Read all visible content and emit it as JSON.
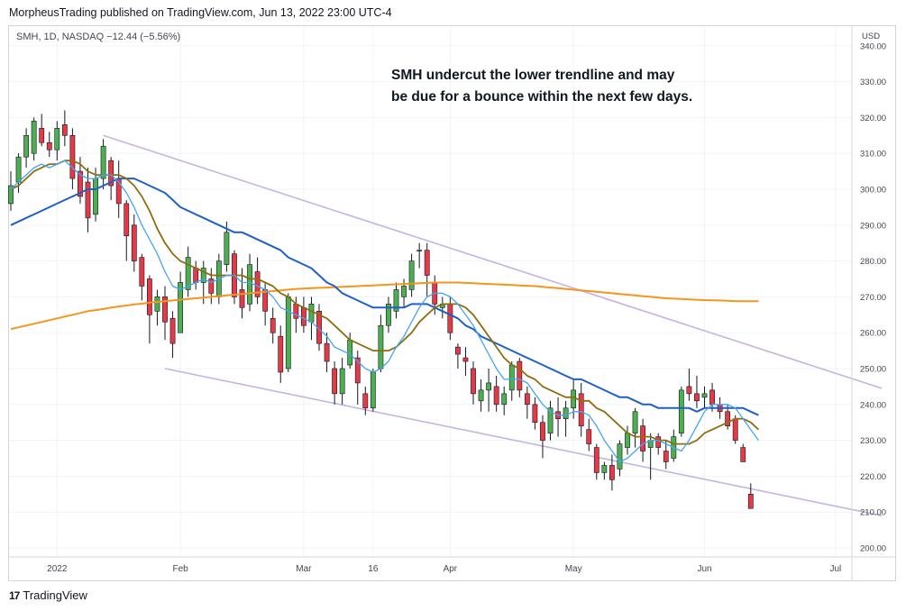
{
  "header": {
    "text": "MorpheusTrading published on TradingView.com, Jun 13, 2022 23:00 UTC-4"
  },
  "symbol": {
    "text": "SMH, 1D, NASDAQ  −12.44 (−5.56%)"
  },
  "annotation": {
    "line1": "SMH undercut the lower trendline and may",
    "line2": "be due for a bounce within the next few days."
  },
  "footer": {
    "brand": "TradingView",
    "logo_icon": "tradingview-logo-icon"
  },
  "chart_data": {
    "type": "candlestick",
    "currency_label": "USD",
    "y_ticks": [
      "200.00",
      "210.00",
      "220.00",
      "230.00",
      "240.00",
      "250.00",
      "260.00",
      "270.00",
      "280.00",
      "290.00",
      "300.00",
      "310.00",
      "320.00",
      "330.00",
      "340.00"
    ],
    "ylim": [
      200,
      345
    ],
    "x_ticks": [
      "2022",
      "Feb",
      "Mar",
      "16",
      "Apr",
      "May",
      "Jun",
      "Jul"
    ],
    "colors": {
      "up": "#4caf50",
      "down": "#e53947",
      "ma_short": "#42a5f5",
      "ma_mid": "#8d6e0f",
      "ma_long": "#1e5fc8",
      "ma_200": "#f7941d",
      "trendline": "#c5b3e0"
    },
    "candles": [
      {
        "o": 296,
        "h": 305,
        "l": 294,
        "c": 301
      },
      {
        "o": 302,
        "h": 310,
        "l": 299,
        "c": 309
      },
      {
        "o": 309,
        "h": 317,
        "l": 306,
        "c": 315
      },
      {
        "o": 310,
        "h": 320,
        "l": 308,
        "c": 319
      },
      {
        "o": 317,
        "h": 321,
        "l": 312,
        "c": 313
      },
      {
        "o": 313,
        "h": 316,
        "l": 309,
        "c": 311
      },
      {
        "o": 311,
        "h": 319,
        "l": 308,
        "c": 317
      },
      {
        "o": 318,
        "h": 322,
        "l": 312,
        "c": 315
      },
      {
        "o": 315,
        "h": 317,
        "l": 300,
        "c": 303
      },
      {
        "o": 305,
        "h": 309,
        "l": 296,
        "c": 298
      },
      {
        "o": 302,
        "h": 306,
        "l": 288,
        "c": 292
      },
      {
        "o": 293,
        "h": 306,
        "l": 291,
        "c": 303
      },
      {
        "o": 303,
        "h": 314,
        "l": 300,
        "c": 312
      },
      {
        "o": 308,
        "h": 309,
        "l": 297,
        "c": 301
      },
      {
        "o": 303,
        "h": 308,
        "l": 292,
        "c": 296
      },
      {
        "o": 296,
        "h": 297,
        "l": 280,
        "c": 287
      },
      {
        "o": 290,
        "h": 293,
        "l": 277,
        "c": 280
      },
      {
        "o": 281,
        "h": 282,
        "l": 269,
        "c": 273
      },
      {
        "o": 275,
        "h": 276,
        "l": 257,
        "c": 265
      },
      {
        "o": 266,
        "h": 272,
        "l": 262,
        "c": 270
      },
      {
        "o": 270,
        "h": 273,
        "l": 258,
        "c": 263
      },
      {
        "o": 264,
        "h": 266,
        "l": 253,
        "c": 257
      },
      {
        "o": 260,
        "h": 277,
        "l": 260,
        "c": 274
      },
      {
        "o": 272,
        "h": 284,
        "l": 270,
        "c": 281
      },
      {
        "o": 278,
        "h": 280,
        "l": 272,
        "c": 274
      },
      {
        "o": 274,
        "h": 280,
        "l": 268,
        "c": 278
      },
      {
        "o": 275,
        "h": 278,
        "l": 268,
        "c": 271
      },
      {
        "o": 270,
        "h": 282,
        "l": 268,
        "c": 280
      },
      {
        "o": 279,
        "h": 291,
        "l": 277,
        "c": 288
      },
      {
        "o": 282,
        "h": 283,
        "l": 268,
        "c": 270
      },
      {
        "o": 272,
        "h": 278,
        "l": 264,
        "c": 267
      },
      {
        "o": 268,
        "h": 282,
        "l": 266,
        "c": 279
      },
      {
        "o": 277,
        "h": 281,
        "l": 268,
        "c": 270
      },
      {
        "o": 272,
        "h": 274,
        "l": 262,
        "c": 266
      },
      {
        "o": 264,
        "h": 267,
        "l": 257,
        "c": 260
      },
      {
        "o": 259,
        "h": 262,
        "l": 246,
        "c": 249
      },
      {
        "o": 250,
        "h": 271,
        "l": 249,
        "c": 270
      },
      {
        "o": 268,
        "h": 270,
        "l": 260,
        "c": 264
      },
      {
        "o": 267,
        "h": 270,
        "l": 260,
        "c": 262
      },
      {
        "o": 263,
        "h": 270,
        "l": 258,
        "c": 268
      },
      {
        "o": 266,
        "h": 268,
        "l": 255,
        "c": 257
      },
      {
        "o": 257,
        "h": 260,
        "l": 249,
        "c": 252
      },
      {
        "o": 250,
        "h": 252,
        "l": 240,
        "c": 243
      },
      {
        "o": 243,
        "h": 253,
        "l": 240,
        "c": 250
      },
      {
        "o": 251,
        "h": 260,
        "l": 250,
        "c": 258
      },
      {
        "o": 253,
        "h": 255,
        "l": 240,
        "c": 246
      },
      {
        "o": 243,
        "h": 245,
        "l": 237,
        "c": 239
      },
      {
        "o": 239,
        "h": 250,
        "l": 238,
        "c": 249
      },
      {
        "o": 250,
        "h": 265,
        "l": 249,
        "c": 262
      },
      {
        "o": 262,
        "h": 270,
        "l": 260,
        "c": 268
      },
      {
        "o": 266,
        "h": 274,
        "l": 264,
        "c": 272
      },
      {
        "o": 270,
        "h": 275,
        "l": 267,
        "c": 273
      },
      {
        "o": 272,
        "h": 282,
        "l": 270,
        "c": 280
      },
      {
        "o": 283,
        "h": 285,
        "l": 278,
        "c": 283
      },
      {
        "o": 283,
        "h": 285,
        "l": 270,
        "c": 276
      },
      {
        "o": 274,
        "h": 276,
        "l": 265,
        "c": 268
      },
      {
        "o": 267,
        "h": 270,
        "l": 264,
        "c": 268
      },
      {
        "o": 268,
        "h": 270,
        "l": 258,
        "c": 260
      },
      {
        "o": 256,
        "h": 257,
        "l": 250,
        "c": 254
      },
      {
        "o": 253,
        "h": 256,
        "l": 248,
        "c": 252
      },
      {
        "o": 250,
        "h": 252,
        "l": 240,
        "c": 243
      },
      {
        "o": 241,
        "h": 247,
        "l": 238,
        "c": 244
      },
      {
        "o": 244,
        "h": 250,
        "l": 238,
        "c": 246
      },
      {
        "o": 245,
        "h": 248,
        "l": 238,
        "c": 240
      },
      {
        "o": 240,
        "h": 245,
        "l": 237,
        "c": 243
      },
      {
        "o": 244,
        "h": 252,
        "l": 241,
        "c": 251
      },
      {
        "o": 252,
        "h": 253,
        "l": 242,
        "c": 244
      },
      {
        "o": 243,
        "h": 245,
        "l": 236,
        "c": 240
      },
      {
        "o": 240,
        "h": 242,
        "l": 233,
        "c": 235
      },
      {
        "o": 235,
        "h": 237,
        "l": 225,
        "c": 230
      },
      {
        "o": 232,
        "h": 241,
        "l": 230,
        "c": 239
      },
      {
        "o": 238,
        "h": 242,
        "l": 231,
        "c": 236
      },
      {
        "o": 236,
        "h": 241,
        "l": 231,
        "c": 239
      },
      {
        "o": 239,
        "h": 247,
        "l": 236,
        "c": 244
      },
      {
        "o": 243,
        "h": 246,
        "l": 231,
        "c": 234
      },
      {
        "o": 233,
        "h": 236,
        "l": 227,
        "c": 229
      },
      {
        "o": 228,
        "h": 229,
        "l": 219,
        "c": 221
      },
      {
        "o": 221,
        "h": 224,
        "l": 219,
        "c": 223
      },
      {
        "o": 223,
        "h": 226,
        "l": 216,
        "c": 219
      },
      {
        "o": 222,
        "h": 230,
        "l": 220,
        "c": 229
      },
      {
        "o": 228,
        "h": 234,
        "l": 226,
        "c": 232
      },
      {
        "o": 232,
        "h": 239,
        "l": 228,
        "c": 238
      },
      {
        "o": 234,
        "h": 236,
        "l": 224,
        "c": 227
      },
      {
        "o": 228,
        "h": 232,
        "l": 219,
        "c": 230
      },
      {
        "o": 231,
        "h": 232,
        "l": 226,
        "c": 228
      },
      {
        "o": 227,
        "h": 230,
        "l": 222,
        "c": 224
      },
      {
        "o": 225,
        "h": 233,
        "l": 224,
        "c": 231
      },
      {
        "o": 232,
        "h": 245,
        "l": 231,
        "c": 244
      },
      {
        "o": 245,
        "h": 250,
        "l": 241,
        "c": 243
      },
      {
        "o": 243,
        "h": 248,
        "l": 239,
        "c": 241
      },
      {
        "o": 242,
        "h": 245,
        "l": 239,
        "c": 243
      },
      {
        "o": 244,
        "h": 246,
        "l": 238,
        "c": 240
      },
      {
        "o": 240,
        "h": 242,
        "l": 236,
        "c": 238
      },
      {
        "o": 238,
        "h": 240,
        "l": 233,
        "c": 234
      },
      {
        "o": 236,
        "h": 237,
        "l": 229,
        "c": 230
      },
      {
        "o": 228,
        "h": 229,
        "l": 224,
        "c": 224
      },
      {
        "o": 215,
        "h": 218,
        "l": 211,
        "c": 211
      }
    ],
    "ma_short": [
      300,
      302,
      304,
      306,
      307,
      306,
      307,
      308,
      306,
      304,
      303,
      303,
      304,
      304,
      302,
      299,
      295,
      290,
      286,
      282,
      277,
      273,
      272,
      273,
      274,
      275,
      274,
      275,
      276,
      276,
      274,
      274,
      273,
      272,
      270,
      267,
      266,
      265,
      264,
      263,
      261,
      259,
      256,
      255,
      254,
      252,
      250,
      249,
      250,
      252,
      256,
      259,
      263,
      267,
      270,
      271,
      271,
      270,
      268,
      265,
      262,
      258,
      254,
      250,
      247,
      247,
      247,
      246,
      243,
      240,
      238,
      237,
      237,
      238,
      238,
      237,
      234,
      230,
      227,
      224,
      225,
      227,
      229,
      230,
      230,
      229,
      228,
      227,
      230,
      234,
      238,
      240,
      240,
      240,
      239,
      236,
      233,
      230
    ],
    "ma_mid": [
      300,
      301,
      303,
      305,
      306,
      307,
      307,
      308,
      308,
      307,
      305,
      304,
      304,
      304,
      304,
      303,
      301,
      298,
      294,
      289,
      285,
      282,
      280,
      279,
      278,
      277,
      276,
      276,
      276,
      276,
      276,
      275,
      275,
      274,
      273,
      271,
      270,
      268,
      267,
      266,
      265,
      264,
      262,
      260,
      258,
      257,
      256,
      255,
      255,
      255,
      256,
      258,
      260,
      263,
      265,
      267,
      268,
      268,
      268,
      267,
      265,
      262,
      259,
      256,
      253,
      251,
      250,
      248,
      247,
      245,
      244,
      243,
      242,
      242,
      241,
      241,
      239,
      238,
      236,
      234,
      232,
      231,
      231,
      231,
      230,
      230,
      229,
      229,
      229,
      230,
      232,
      233,
      234,
      235,
      236,
      236,
      235,
      233
    ],
    "ma_long": [
      290,
      291,
      292,
      293,
      294,
      295,
      296,
      297,
      298,
      299,
      300,
      300,
      301,
      302,
      303,
      303,
      303,
      302,
      301,
      300,
      299,
      297,
      295,
      294,
      293,
      292,
      291,
      290,
      289,
      288,
      288,
      287,
      286,
      285,
      284,
      283,
      281,
      280,
      279,
      278,
      276,
      274,
      273,
      271,
      270,
      269,
      268,
      267,
      267,
      267,
      267,
      267,
      268,
      268,
      268,
      267,
      266,
      265,
      264,
      262,
      261,
      259,
      258,
      257,
      256,
      255,
      254,
      253,
      252,
      251,
      250,
      249,
      248,
      247,
      247,
      246,
      245,
      244,
      243,
      242,
      242,
      241,
      240,
      240,
      239,
      239,
      239,
      239,
      239,
      238,
      239,
      239,
      239,
      239,
      239,
      239,
      238,
      237
    ],
    "ma_200": [
      261,
      261.5,
      262,
      262.5,
      263,
      263.5,
      264,
      264.5,
      265,
      265.5,
      266,
      266.3,
      266.6,
      267,
      267.3,
      267.6,
      267.9,
      268.1,
      268.4,
      268.6,
      268.8,
      269,
      269.2,
      269.4,
      269.6,
      269.8,
      270,
      270.2,
      270.4,
      270.6,
      270.8,
      271,
      271.2,
      271.4,
      271.6,
      271.8,
      272,
      272.2,
      272.3,
      272.4,
      272.5,
      272.6,
      272.7,
      272.8,
      272.9,
      273,
      273.1,
      273.2,
      273.3,
      273.4,
      273.5,
      273.6,
      273.7,
      273.8,
      273.9,
      274,
      274,
      274,
      274,
      273.9,
      273.8,
      273.7,
      273.6,
      273.5,
      273.4,
      273.3,
      273.2,
      273.1,
      273,
      272.8,
      272.6,
      272.4,
      272.2,
      272,
      271.8,
      271.6,
      271.4,
      271.2,
      271,
      270.8,
      270.6,
      270.4,
      270.2,
      270,
      269.8,
      269.6,
      269.5,
      269.4,
      269.3,
      269.2,
      269.1,
      269.05,
      269,
      268.9,
      268.8,
      268.8,
      268.8,
      268.8
    ],
    "trendlines": [
      {
        "name": "upper",
        "from": [
          12,
          315
        ],
        "to": [
          113,
          244.5
        ]
      },
      {
        "name": "lower",
        "from": [
          20,
          250
        ],
        "to": [
          113,
          209
        ]
      }
    ]
  }
}
